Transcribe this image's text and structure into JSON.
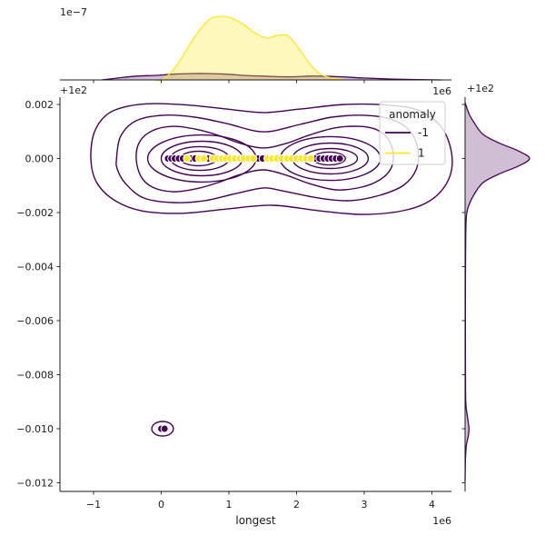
{
  "figure": {
    "background": "#ffffff"
  },
  "chart_data": {
    "type": "scatter",
    "subtype": "jointplot: scatter + bivariate KDE contours + marginal KDE densities, hue = anomaly",
    "joint": {
      "x_axis": {
        "label": "longest",
        "multiplier_label": "1e6",
        "tick_values": [
          -1,
          0,
          1,
          2,
          3,
          4
        ],
        "tick_labels": [
          "−1",
          "0",
          "1",
          "2",
          "3",
          "4"
        ],
        "range": [
          -1.4966,
          4.2886
        ]
      },
      "y_axis": {
        "offset_label": "+1e2",
        "tick_values": [
          0.002,
          0.0,
          -0.002,
          -0.004,
          -0.006,
          -0.008,
          -0.01,
          -0.012
        ],
        "tick_labels": [
          "0.002",
          "0.000",
          "−0.002",
          "−0.004",
          "−0.006",
          "−0.008",
          "−0.010",
          "−0.012"
        ],
        "range": [
          -0.012319,
          0.002269
        ]
      },
      "legend": {
        "title": "anomaly",
        "entries": [
          {
            "label": "-1",
            "color": "#440154"
          },
          {
            "label": "1",
            "color": "#FDE725"
          }
        ]
      },
      "scatter_series": [
        {
          "name": "-1",
          "color": "#440154",
          "marker_edge": "#ffffff",
          "points": [
            [
              0.1,
              0
            ],
            [
              0.15,
              0
            ],
            [
              0.2,
              0
            ],
            [
              0.26,
              0
            ],
            [
              0.32,
              0
            ],
            [
              0.44,
              0
            ],
            [
              0.5,
              0
            ],
            [
              0.7,
              0
            ],
            [
              1.43,
              0
            ],
            [
              1.5,
              0
            ],
            [
              2.28,
              0
            ],
            [
              2.34,
              0
            ],
            [
              2.4,
              0
            ],
            [
              2.46,
              0
            ],
            [
              2.52,
              0
            ],
            [
              2.58,
              0
            ],
            [
              2.64,
              0
            ],
            [
              0.0,
              -0.01
            ],
            [
              0.05,
              -0.01
            ]
          ]
        },
        {
          "name": "1",
          "color": "#FDE725",
          "marker_edge": "#ffffff",
          "points": [
            [
              0.38,
              0
            ],
            [
              0.56,
              0
            ],
            [
              0.63,
              0
            ],
            [
              0.76,
              0
            ],
            [
              0.83,
              0
            ],
            [
              0.9,
              0
            ],
            [
              0.96,
              0
            ],
            [
              1.02,
              0
            ],
            [
              1.09,
              0
            ],
            [
              1.16,
              0
            ],
            [
              1.22,
              0
            ],
            [
              1.29,
              0
            ],
            [
              1.36,
              0
            ],
            [
              1.57,
              0
            ],
            [
              1.64,
              0
            ],
            [
              1.71,
              0
            ],
            [
              1.78,
              0
            ],
            [
              1.86,
              0
            ],
            [
              1.93,
              0
            ],
            [
              2.0,
              0
            ],
            [
              2.07,
              0
            ],
            [
              2.14,
              0
            ],
            [
              2.21,
              0
            ]
          ]
        }
      ],
      "contours": {
        "color": "#440154",
        "polygons": [
          [
            [
              -1.04,
              0
            ],
            [
              -0.99,
              0.00096
            ],
            [
              -0.8,
              0.00163
            ],
            [
              -0.5,
              0.00193
            ],
            [
              -0.1,
              0.00203
            ],
            [
              0.44,
              0.00197
            ],
            [
              0.97,
              0.00183
            ],
            [
              1.51,
              0.0017
            ],
            [
              2.05,
              0.00183
            ],
            [
              2.72,
              0.002
            ],
            [
              3.39,
              0.00197
            ],
            [
              3.82,
              0.00176
            ],
            [
              4.14,
              0.00116
            ],
            [
              4.29,
              0.00022
            ],
            [
              4.26,
              -0.00069
            ],
            [
              4.03,
              -0.00146
            ],
            [
              3.63,
              -0.0019
            ],
            [
              2.99,
              -0.00207
            ],
            [
              2.32,
              -0.00193
            ],
            [
              1.64,
              -0.00173
            ],
            [
              0.97,
              -0.00187
            ],
            [
              0.3,
              -0.00203
            ],
            [
              -0.3,
              -0.00193
            ],
            [
              -0.7,
              -0.00153
            ],
            [
              -0.96,
              -0.00086
            ]
          ],
          [
            [
              -0.66,
              0
            ],
            [
              -0.6,
              0.00082
            ],
            [
              -0.37,
              0.0014
            ],
            [
              0.03,
              0.0016
            ],
            [
              0.5,
              0.00153
            ],
            [
              0.97,
              0.00129
            ],
            [
              1.51,
              0.00099
            ],
            [
              2.05,
              0.00126
            ],
            [
              2.52,
              0.00153
            ],
            [
              2.99,
              0.0016
            ],
            [
              3.39,
              0.00146
            ],
            [
              3.66,
              0.00106
            ],
            [
              3.79,
              0.00039
            ],
            [
              3.77,
              -0.00039
            ],
            [
              3.58,
              -0.00099
            ],
            [
              3.23,
              -0.00136
            ],
            [
              2.79,
              -0.00156
            ],
            [
              2.32,
              -0.00146
            ],
            [
              1.78,
              -0.00119
            ],
            [
              1.51,
              -0.00109
            ],
            [
              1.11,
              -0.00129
            ],
            [
              0.64,
              -0.00156
            ],
            [
              0.17,
              -0.00163
            ],
            [
              -0.26,
              -0.00146
            ],
            [
              -0.53,
              -0.00092
            ],
            [
              -0.65,
              -0.00039
            ]
          ],
          [
            [
              -0.37,
              0
            ],
            [
              -0.32,
              0.00062
            ],
            [
              -0.13,
              0.00103
            ],
            [
              0.17,
              0.00119
            ],
            [
              0.5,
              0.00109
            ],
            [
              0.84,
              0.00086
            ],
            [
              1.17,
              0.00056
            ],
            [
              1.51,
              0.00039
            ],
            [
              1.85,
              0.00056
            ],
            [
              2.18,
              0.00086
            ],
            [
              2.56,
              0.00113
            ],
            [
              2.92,
              0.00119
            ],
            [
              3.19,
              0.00106
            ],
            [
              3.36,
              0.00069
            ],
            [
              3.43,
              0.00015
            ],
            [
              3.39,
              -0.00039
            ],
            [
              3.23,
              -0.00079
            ],
            [
              2.96,
              -0.00106
            ],
            [
              2.58,
              -0.00116
            ],
            [
              2.18,
              -0.00092
            ],
            [
              1.85,
              -0.00062
            ],
            [
              1.51,
              -0.00042
            ],
            [
              1.17,
              -0.00059
            ],
            [
              0.84,
              -0.00089
            ],
            [
              0.5,
              -0.00113
            ],
            [
              0.17,
              -0.00123
            ],
            [
              -0.13,
              -0.00106
            ],
            [
              -0.3,
              -0.00066
            ]
          ]
        ],
        "ellipses": [
          {
            "cx": 0.6,
            "cy": 0,
            "rx": 0.8,
            "ry": 0.00087
          },
          {
            "cx": 0.6,
            "cy": 0,
            "rx": 0.6,
            "ry": 0.00064
          },
          {
            "cx": 0.57,
            "cy": 0,
            "rx": 0.43,
            "ry": 0.00044
          },
          {
            "cx": 0.55,
            "cy": 0,
            "rx": 0.27,
            "ry": 0.00027
          },
          {
            "cx": 2.5,
            "cy": 0,
            "rx": 0.74,
            "ry": 0.00081
          },
          {
            "cx": 2.5,
            "cy": 0,
            "rx": 0.56,
            "ry": 0.00057
          },
          {
            "cx": 2.5,
            "cy": 0,
            "rx": 0.4,
            "ry": 0.00037
          },
          {
            "cx": 2.48,
            "cy": 0,
            "rx": 0.24,
            "ry": 0.00024
          },
          {
            "cx": 0.02,
            "cy": -0.01,
            "rx": 0.16,
            "ry": 0.00027
          }
        ]
      }
    },
    "marginal_top": {
      "scale_label": "1e−7",
      "multiplier_label": "1e6",
      "curves": [
        {
          "name": "-1",
          "color": "#440154",
          "fill": "rgba(68,1,84,0.25)",
          "points": [
            [
              -0.88,
              0
            ],
            [
              -0.64,
              0.03
            ],
            [
              -0.37,
              0.06
            ],
            [
              -0.1,
              0.07
            ],
            [
              0.17,
              0.09
            ],
            [
              0.44,
              0.1
            ],
            [
              0.7,
              0.1
            ],
            [
              0.97,
              0.09
            ],
            [
              1.24,
              0.07
            ],
            [
              1.51,
              0.06
            ],
            [
              1.78,
              0.05
            ],
            [
              1.98,
              0.05
            ],
            [
              2.18,
              0.06
            ],
            [
              2.38,
              0.06
            ],
            [
              2.65,
              0.05
            ],
            [
              2.99,
              0.03
            ],
            [
              3.39,
              0.015
            ],
            [
              3.79,
              0.005
            ],
            [
              4.13,
              0
            ]
          ]
        },
        {
          "name": "1",
          "color": "#FDE725",
          "fill": "rgba(253,231,37,0.30)",
          "points": [
            [
              -0.1,
              0
            ],
            [
              0.03,
              0.01
            ],
            [
              0.23,
              0.23
            ],
            [
              0.44,
              0.59
            ],
            [
              0.6,
              0.83
            ],
            [
              0.74,
              0.97
            ],
            [
              0.91,
              1.0
            ],
            [
              1.04,
              0.97
            ],
            [
              1.22,
              0.87
            ],
            [
              1.38,
              0.74
            ],
            [
              1.55,
              0.66
            ],
            [
              1.68,
              0.69
            ],
            [
              1.81,
              0.71
            ],
            [
              1.91,
              0.66
            ],
            [
              2.05,
              0.47
            ],
            [
              2.19,
              0.26
            ],
            [
              2.34,
              0.1
            ],
            [
              2.52,
              0.03
            ],
            [
              2.72,
              0
            ]
          ]
        }
      ]
    },
    "marginal_right": {
      "offset_label": "+1e2",
      "curve": {
        "name": "-1",
        "color": "#440154",
        "fill": "rgba(68,1,84,0.25)",
        "points": [
          [
            0.00207,
            0
          ],
          [
            0.00166,
            0.06
          ],
          [
            0.00133,
            0.14
          ],
          [
            0.00089,
            0.28
          ],
          [
            0.00056,
            0.54
          ],
          [
            0.00029,
            0.82
          ],
          [
            0.0,
            1.0
          ],
          [
            -0.00029,
            0.82
          ],
          [
            -0.00056,
            0.54
          ],
          [
            -0.00089,
            0.28
          ],
          [
            -0.00133,
            0.14
          ],
          [
            -0.00166,
            0.07
          ],
          [
            -0.00197,
            0.03
          ],
          [
            -0.00254,
            0.012
          ],
          [
            -0.0045,
            0.006
          ],
          [
            -0.007,
            0.005
          ],
          [
            -0.00893,
            0.01
          ],
          [
            -0.00943,
            0.03
          ],
          [
            -0.00977,
            0.05
          ],
          [
            -0.01,
            0.06
          ],
          [
            -0.01027,
            0.05
          ],
          [
            -0.01061,
            0.02
          ],
          [
            -0.01111,
            0.006
          ],
          [
            -0.01195,
            0
          ]
        ]
      }
    },
    "style": {
      "spine_color": "#1a1a1a",
      "tick_color": "#1a1a1a",
      "legend_border": "#cccccc",
      "legend_bg": "rgba(255,255,255,0.8)"
    }
  }
}
